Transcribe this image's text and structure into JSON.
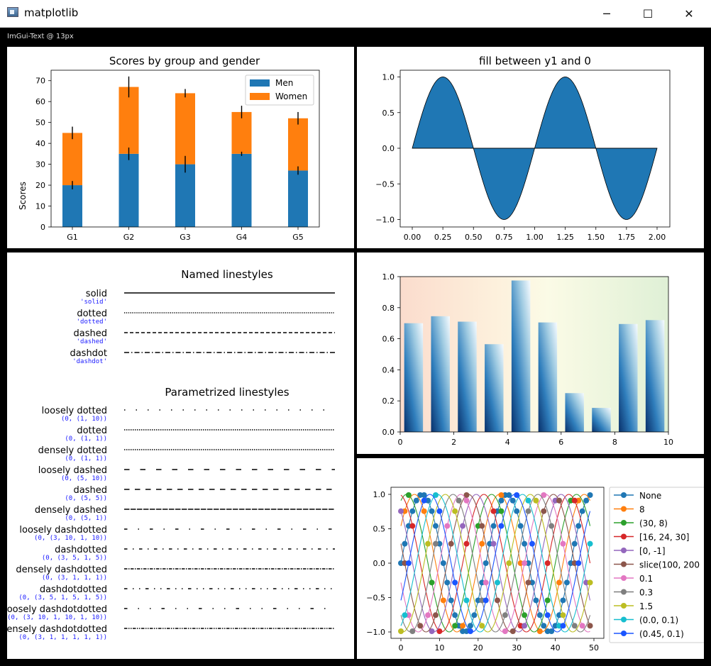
{
  "window": {
    "title": "matplotlib",
    "imgui_label": "ImGui-Text @ 13px",
    "minimize_glyph": "─",
    "maximize_glyph": "☐",
    "close_glyph": "✕"
  },
  "charts": {
    "scores": {
      "title": "Scores by group and gender",
      "ylabel": "Scores",
      "categories": [
        "G1",
        "G2",
        "G3",
        "G4",
        "G5"
      ],
      "yticks": [
        "0",
        "10",
        "20",
        "30",
        "40",
        "50",
        "60",
        "70"
      ],
      "legend": [
        "Men",
        "Women"
      ]
    },
    "fill": {
      "title": "fill between y1 and 0",
      "xticks": [
        "0.00",
        "0.25",
        "0.50",
        "0.75",
        "1.00",
        "1.25",
        "1.50",
        "1.75",
        "2.00"
      ],
      "yticks": [
        "−1.0",
        "−0.5",
        "0.0",
        "0.5",
        "1.0"
      ]
    },
    "linestyles": {
      "named_title": "Named linestyles",
      "param_title": "Parametrized linestyles",
      "named": [
        {
          "name": "solid",
          "spec": "'solid'"
        },
        {
          "name": "dotted",
          "spec": "'dotted'"
        },
        {
          "name": "dashed",
          "spec": "'dashed'"
        },
        {
          "name": "dashdot",
          "spec": "'dashdot'"
        }
      ],
      "param": [
        {
          "name": "loosely dotted",
          "spec": "(0, (1, 10))"
        },
        {
          "name": "dotted",
          "spec": "(0, (1, 1))"
        },
        {
          "name": "densely dotted",
          "spec": "(0, (1, 1))"
        },
        {
          "name": "loosely dashed",
          "spec": "(0, (5, 10))"
        },
        {
          "name": "dashed",
          "spec": "(0, (5, 5))"
        },
        {
          "name": "densely dashed",
          "spec": "(0, (5, 1))"
        },
        {
          "name": "loosely dashdotted",
          "spec": "(0, (3, 10, 1, 10))"
        },
        {
          "name": "dashdotted",
          "spec": "(0, (3, 5, 1, 5))"
        },
        {
          "name": "densely dashdotted",
          "spec": "(0, (3, 1, 1, 1))"
        },
        {
          "name": "dashdotdotted",
          "spec": "(0, (3, 5, 1, 5, 1, 5))"
        },
        {
          "name": "loosely dashdotdotted",
          "spec": "(0, (3, 10, 1, 10, 1, 10))"
        },
        {
          "name": "densely dashdotdotted",
          "spec": "(0, (3, 1, 1, 1, 1, 1))"
        }
      ]
    },
    "gradient": {
      "xticks": [
        "0",
        "2",
        "4",
        "6",
        "8",
        "10"
      ],
      "yticks": [
        "0.0",
        "0.2",
        "0.4",
        "0.6",
        "0.8",
        "1.0"
      ]
    },
    "markevery": {
      "xticks": [
        "0",
        "10",
        "20",
        "30",
        "40",
        "50"
      ],
      "yticks": [
        "−1.0",
        "−0.5",
        "0.0",
        "0.5",
        "1.0"
      ],
      "legend": [
        "None",
        "8",
        "(30, 8)",
        "[16, 24, 30]",
        "[0, -1]",
        "slice(100, 200",
        "0.1",
        "0.3",
        "1.5",
        "(0.0, 0.1)",
        "(0.45, 0.1)"
      ]
    }
  },
  "chart_data": [
    {
      "type": "bar",
      "title": "Scores by group and gender",
      "ylabel": "Scores",
      "xlabel": "",
      "categories": [
        "G1",
        "G2",
        "G3",
        "G4",
        "G5"
      ],
      "ylim": [
        0,
        75
      ],
      "stacked": true,
      "series": [
        {
          "name": "Men",
          "values": [
            20,
            35,
            30,
            35,
            27
          ],
          "errors": [
            2,
            3,
            4,
            1,
            2
          ],
          "color": "#1f77b4"
        },
        {
          "name": "Women",
          "values": [
            25,
            32,
            34,
            20,
            25
          ],
          "errors": [
            3,
            5,
            2,
            3,
            3
          ],
          "color": "#ff7f0e"
        }
      ],
      "legend_position": "top-right"
    },
    {
      "type": "area",
      "title": "fill between y1 and 0",
      "x_range": [
        0,
        2
      ],
      "ylim": [
        -1.1,
        1.1
      ],
      "function": "sin(2*pi*x)",
      "color": "#1f77b4"
    },
    {
      "type": "bar",
      "title": "",
      "x": [
        0.5,
        1.5,
        2.5,
        3.5,
        4.5,
        5.5,
        6.5,
        7.5,
        8.5,
        9.5
      ],
      "values": [
        0.7,
        0.745,
        0.71,
        0.565,
        0.975,
        0.705,
        0.25,
        0.155,
        0.695,
        0.72
      ],
      "xlim": [
        0,
        10
      ],
      "ylim": [
        0,
        1.0
      ],
      "background_gradient": [
        "#fbdccd",
        "#fdf0dc",
        "#fbfbe6",
        "#dff0d6"
      ]
    },
    {
      "type": "line",
      "title": "",
      "x_range": [
        0,
        49
      ],
      "ylim": [
        -1.1,
        1.1
      ],
      "legend_position": "right",
      "series_names": [
        "None",
        "8",
        "(30, 8)",
        "[16, 24, 30]",
        "[0, -1]",
        "slice(100, 200",
        "0.1",
        "0.3",
        "1.5",
        "(0.0, 0.1)",
        "(0.45, 0.1)"
      ],
      "colors": [
        "#1f77b4",
        "#ff7f0e",
        "#2ca02c",
        "#d62728",
        "#9467bd",
        "#8c564b",
        "#e377c2",
        "#7f7f7f",
        "#bcbd22",
        "#17becf",
        "#1a55ff"
      ]
    }
  ]
}
